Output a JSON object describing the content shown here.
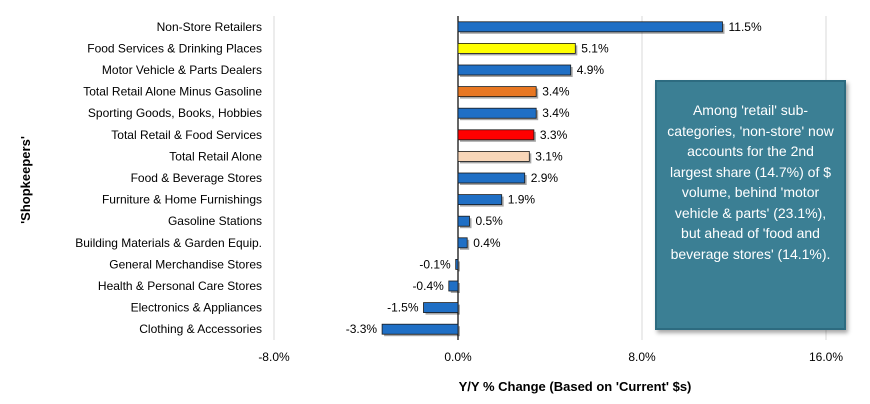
{
  "chart_data": {
    "type": "bar",
    "orientation": "horizontal",
    "categories": [
      "Non-Store Retailers",
      "Food Services & Drinking Places",
      "Motor Vehicle & Parts Dealers",
      "Total Retail Alone Minus Gasoline",
      "Sporting Goods, Books, Hobbies",
      "Total Retail & Food Services",
      "Total Retail Alone",
      "Food & Beverage Stores",
      "Furniture & Home Furnishings",
      "Gasoline Stations",
      "Building Materials & Garden Equip.",
      "General Merchandise Stores",
      "Health & Personal Care Stores",
      "Electronics & Appliances",
      "Clothing & Accessories"
    ],
    "values": [
      11.5,
      5.1,
      4.9,
      3.4,
      3.4,
      3.3,
      3.1,
      2.9,
      1.9,
      0.5,
      0.4,
      -0.1,
      -0.4,
      -1.5,
      -3.3
    ],
    "data_labels": [
      "11.5%",
      "5.1%",
      "4.9%",
      "3.4%",
      "3.4%",
      "3.3%",
      "3.1%",
      "2.9%",
      "1.9%",
      "0.5%",
      "0.4%",
      "-0.1%",
      "-0.4%",
      "-1.5%",
      "-3.3%"
    ],
    "bar_colors": [
      "#1f6fc5",
      "#ffff00",
      "#1f6fc5",
      "#e87722",
      "#1f6fc5",
      "#ff0000",
      "#f8d6b8",
      "#1f6fc5",
      "#1f6fc5",
      "#1f6fc5",
      "#1f6fc5",
      "#1f6fc5",
      "#1f6fc5",
      "#1f6fc5",
      "#1f6fc5"
    ],
    "xlim": [
      -8,
      16
    ],
    "xticks": [
      -8,
      0,
      8,
      16
    ],
    "xtick_labels": [
      "-8.0%",
      "0.0%",
      "8.0%",
      "16.0%"
    ],
    "xlabel": "Y/Y % Change (Based  on 'Current' $s)",
    "ylabel": "'Shopkeepers'",
    "grid": "vertical",
    "legend": "none"
  },
  "annotation": {
    "text": "Among 'retail' sub-categories, 'non-store' now accounts for the 2nd largest share (14.7%) of $ volume, behind 'motor vehicle & parts' (23.1%), but ahead of 'food and beverage stores' (14.1%).",
    "background": "#3b7f94"
  }
}
